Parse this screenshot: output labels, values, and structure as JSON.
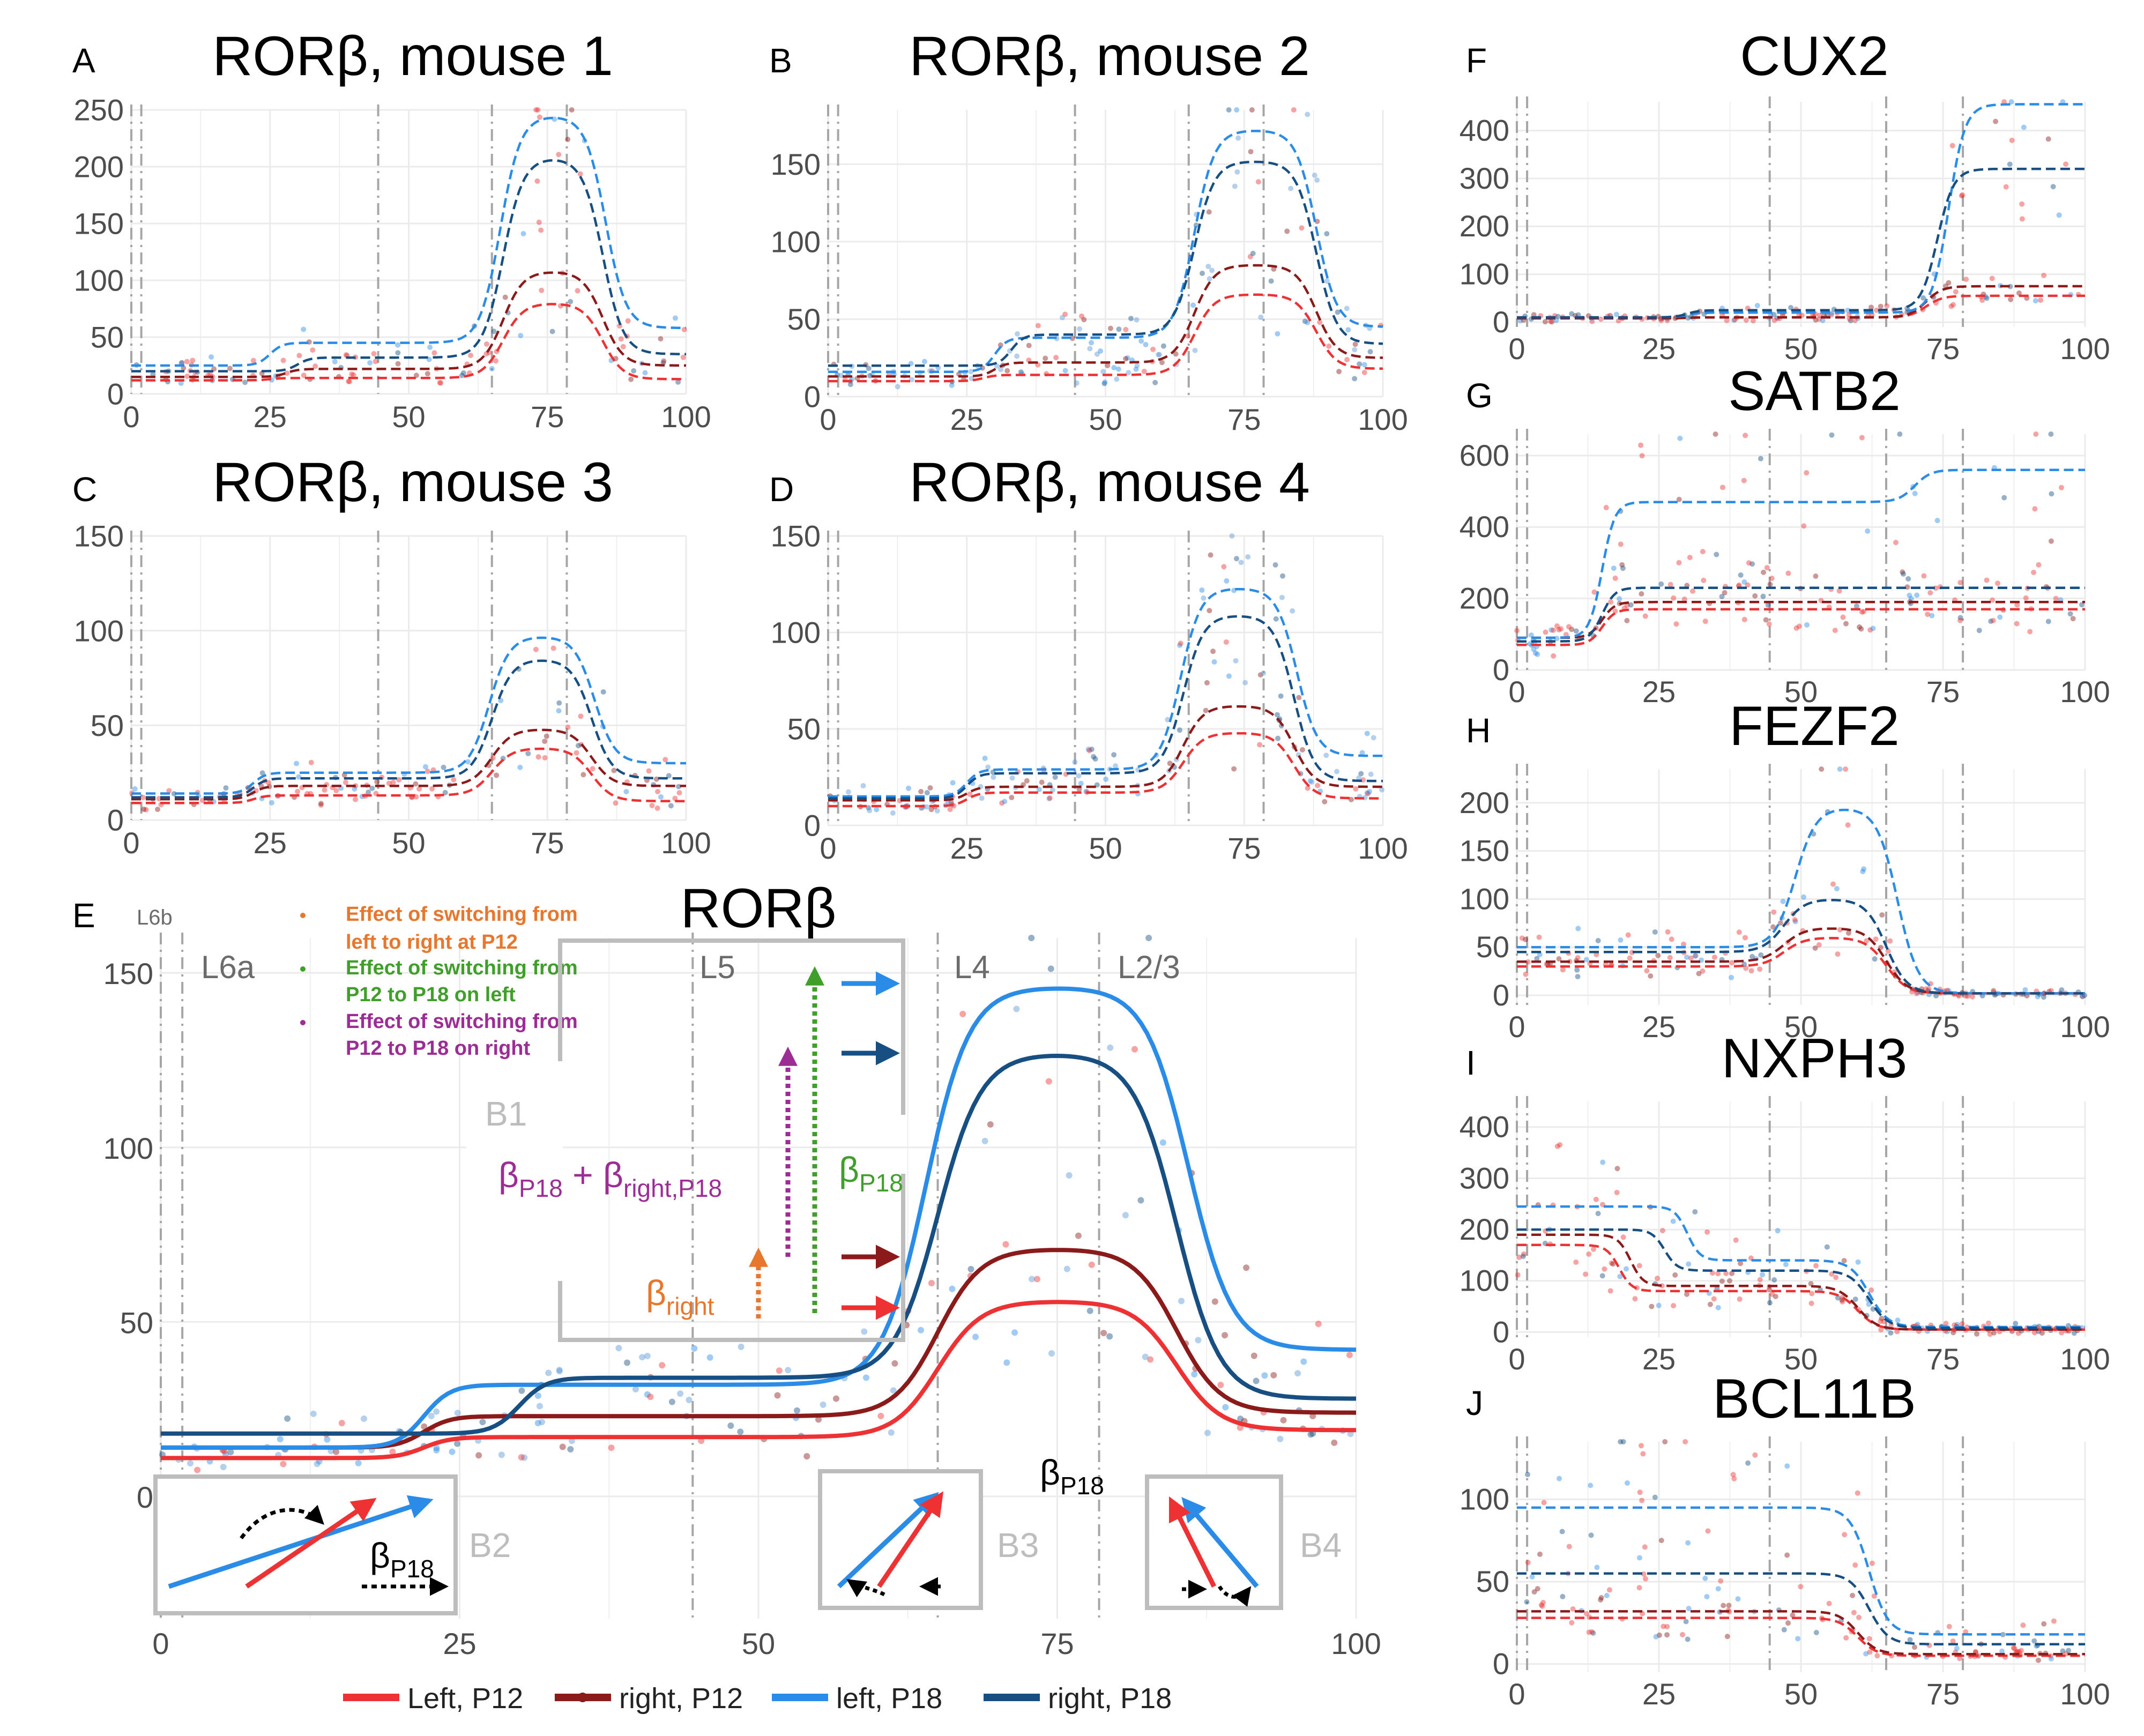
{
  "panel_labels": [
    "A",
    "B",
    "C",
    "D",
    "E",
    "F",
    "G",
    "H",
    "I",
    "J"
  ],
  "legend": [
    {
      "label": "Left, P12",
      "color": "#ee3233"
    },
    {
      "label": "right, P12",
      "color": "#8b1a1a"
    },
    {
      "label": "left, P18",
      "color": "#2b8ce8"
    },
    {
      "label": "right, P18",
      "color": "#174f82"
    }
  ],
  "annotation": {
    "layers": [
      "L6b",
      "L6a",
      "L5",
      "L4",
      "L2/3"
    ],
    "notes": [
      {
        "text1": "Effect of switching from",
        "text2": "left to right at P12",
        "color": "#e8772e"
      },
      {
        "text1": "Effect of switching from",
        "text2": "P12 to P18 on left",
        "color": "#3f9f2a"
      },
      {
        "text1": "Effect of switching from",
        "text2": "P12 to P18 on right",
        "color": "#9c2d95"
      }
    ],
    "box_labels": [
      "B1",
      "B2",
      "B3",
      "B4"
    ],
    "beta_symbol": "β",
    "beta_terms": {
      "p18_sub": "P18",
      "plus": " + ",
      "right_p18_sub": "right,P18",
      "right_sub": "right"
    }
  },
  "chart_data": [
    {
      "id": "A",
      "type": "line",
      "title": "RORβ, mouse 1",
      "xlim": [
        0,
        100
      ],
      "ylim": [
        0,
        250
      ],
      "xticks": [
        "0",
        "25",
        "50",
        "75",
        "100"
      ],
      "yticks": [
        "0",
        "50",
        "100",
        "150",
        "200",
        "250"
      ],
      "vlines": [
        0,
        1.8,
        44.5,
        65,
        78.5
      ],
      "series": [
        {
          "color": "#ee3233",
          "base": 12,
          "step": 14,
          "step_x": 25,
          "peak": 80,
          "center": 76,
          "width": 18,
          "tail": 13
        },
        {
          "color": "#8b1a1a",
          "base": 15,
          "step": 22,
          "step_x": 28,
          "peak": 108,
          "center": 76,
          "width": 18,
          "tail": 25
        },
        {
          "color": "#2b8ce8",
          "base": 25,
          "step": 45,
          "step_x": 25,
          "peak": 245,
          "center": 76,
          "width": 19,
          "tail": 58
        },
        {
          "color": "#174f82",
          "base": 20,
          "step": 32,
          "step_x": 30,
          "peak": 208,
          "center": 76,
          "width": 18,
          "tail": 35
        }
      ],
      "points": {
        "color": "#ee3233",
        "n": 120,
        "amp": 0.35
      }
    },
    {
      "id": "B",
      "type": "line",
      "title": "RORβ, mouse 2",
      "xlim": [
        0,
        100
      ],
      "ylim": [
        0,
        185
      ],
      "xticks": [
        "0",
        "25",
        "50",
        "75",
        "100"
      ],
      "yticks": [
        "0",
        "50",
        "100",
        "150"
      ],
      "vlines": [
        0,
        1.8,
        44.5,
        65,
        78.5
      ],
      "series": [
        {
          "color": "#ee3233",
          "base": 10,
          "step": 14,
          "step_x": 28,
          "peak": 66,
          "center": 77,
          "width": 22,
          "tail": 18
        },
        {
          "color": "#8b1a1a",
          "base": 13,
          "step": 22,
          "step_x": 30,
          "peak": 85,
          "center": 77,
          "width": 22,
          "tail": 25
        },
        {
          "color": "#2b8ce8",
          "base": 16,
          "step": 38,
          "step_x": 30,
          "peak": 172,
          "center": 77,
          "width": 22,
          "tail": 45
        },
        {
          "color": "#174f82",
          "base": 20,
          "step": 40,
          "step_x": 33,
          "peak": 152,
          "center": 77,
          "width": 22,
          "tail": 34
        }
      ],
      "points": {
        "color": "#5a96d6",
        "n": 150,
        "amp": 0.4
      }
    },
    {
      "id": "C",
      "type": "line",
      "title": "RORβ, mouse 3",
      "xlim": [
        0,
        100
      ],
      "ylim": [
        0,
        150
      ],
      "xticks": [
        "0",
        "25",
        "50",
        "75",
        "100"
      ],
      "yticks": [
        "0",
        "50",
        "100",
        "150"
      ],
      "vlines": [
        0,
        1.8,
        44.5,
        65,
        78.5
      ],
      "series": [
        {
          "color": "#ee3233",
          "base": 9,
          "step": 13,
          "step_x": 22,
          "peak": 38,
          "center": 74,
          "width": 18,
          "tail": 10
        },
        {
          "color": "#8b1a1a",
          "base": 11,
          "step": 18,
          "step_x": 22,
          "peak": 48,
          "center": 74,
          "width": 18,
          "tail": 18
        },
        {
          "color": "#2b8ce8",
          "base": 14,
          "step": 25,
          "step_x": 22,
          "peak": 97,
          "center": 74,
          "width": 19,
          "tail": 30
        },
        {
          "color": "#174f82",
          "base": 12,
          "step": 22,
          "step_x": 22,
          "peak": 85,
          "center": 74,
          "width": 18,
          "tail": 22
        }
      ],
      "points": {
        "color": "#ee3233",
        "n": 130,
        "amp": 0.4
      }
    },
    {
      "id": "D",
      "type": "line",
      "title": "RORβ, mouse 4",
      "xlim": [
        0,
        100
      ],
      "ylim": [
        0,
        150
      ],
      "xticks": [
        "0",
        "25",
        "50",
        "75",
        "100"
      ],
      "yticks": [
        "0",
        "50",
        "100",
        "150"
      ],
      "vlines": [
        0,
        1.8,
        44.5,
        65,
        78.5
      ],
      "series": [
        {
          "color": "#ee3233",
          "base": 10,
          "step": 17,
          "step_x": 25,
          "peak": 48,
          "center": 74,
          "width": 20,
          "tail": 14
        },
        {
          "color": "#8b1a1a",
          "base": 13,
          "step": 20,
          "step_x": 25,
          "peak": 62,
          "center": 74,
          "width": 20,
          "tail": 20
        },
        {
          "color": "#2b8ce8",
          "base": 15,
          "step": 29,
          "step_x": 25,
          "peak": 123,
          "center": 74,
          "width": 21,
          "tail": 36
        },
        {
          "color": "#174f82",
          "base": 14,
          "step": 27,
          "step_x": 25,
          "peak": 109,
          "center": 74,
          "width": 20,
          "tail": 23
        }
      ],
      "points": {
        "color": "#5a96d6",
        "n": 160,
        "amp": 0.4
      }
    },
    {
      "id": "E",
      "type": "line",
      "title": "RORβ",
      "xlim": [
        0,
        100
      ],
      "ylim": [
        -35,
        160
      ],
      "xticks": [
        "0",
        "25",
        "50",
        "75",
        "100"
      ],
      "yticks": [
        "0",
        "50",
        "100",
        "150"
      ],
      "vlines": [
        0,
        1.8,
        44.5,
        65,
        78.5
      ],
      "series": [
        {
          "color": "#ee3233",
          "base": 11,
          "step": 17,
          "step_x": 22,
          "peak": 56,
          "center": 75,
          "width": 20,
          "tail": 19
        },
        {
          "color": "#8b1a1a",
          "base": 14,
          "step": 23,
          "step_x": 22,
          "peak": 71,
          "center": 75,
          "width": 20,
          "tail": 24
        },
        {
          "color": "#2b8ce8",
          "base": 14,
          "step": 32,
          "step_x": 22,
          "peak": 146,
          "center": 75,
          "width": 22,
          "tail": 42
        },
        {
          "color": "#174f82",
          "base": 18,
          "step": 34,
          "step_x": 30,
          "peak": 127,
          "center": 75,
          "width": 20,
          "tail": 28
        }
      ],
      "points": {
        "color": "#5a96d6",
        "n": 180,
        "amp": 0.35
      }
    },
    {
      "id": "F",
      "type": "line",
      "title": "CUX2",
      "xlim": [
        0,
        100
      ],
      "ylim": [
        -10,
        460
      ],
      "xticks": [
        "0",
        "25",
        "50",
        "75",
        "100"
      ],
      "yticks": [
        "0",
        "100",
        "200",
        "300",
        "400"
      ],
      "vlines": [
        0,
        1.8,
        44.5,
        65,
        78.5
      ],
      "series": [
        {
          "color": "#ee3233",
          "base": 8,
          "step": 10,
          "step_x": 30,
          "peak": 55,
          "center": 72,
          "width": 10,
          "tail": 55,
          "kind": "sigmoid"
        },
        {
          "color": "#8b1a1a",
          "base": 8,
          "step": 10,
          "step_x": 30,
          "peak": 75,
          "center": 72,
          "width": 10,
          "tail": 75,
          "kind": "sigmoid"
        },
        {
          "color": "#2b8ce8",
          "base": 10,
          "step": 20,
          "step_x": 30,
          "peak": 455,
          "center": 76,
          "width": 10,
          "tail": 455,
          "kind": "sigmoid"
        },
        {
          "color": "#174f82",
          "base": 10,
          "step": 25,
          "step_x": 30,
          "peak": 320,
          "center": 74,
          "width": 10,
          "tail": 320,
          "kind": "sigmoid"
        }
      ],
      "points": {
        "color": "#ee3233",
        "n": 150,
        "amp": 0.4
      }
    },
    {
      "id": "G",
      "type": "line",
      "title": "SATB2",
      "xlim": [
        0,
        100
      ],
      "ylim": [
        0,
        660
      ],
      "xticks": [
        "0",
        "25",
        "50",
        "75",
        "100"
      ],
      "yticks": [
        "0",
        "200",
        "400",
        "600"
      ],
      "vlines": [
        0,
        1.8,
        44.5,
        65,
        78.5
      ],
      "series": [
        {
          "color": "#ee3233",
          "base": 70,
          "step": 170,
          "step_x": 15,
          "peak": 170,
          "center": 70,
          "width": 10,
          "tail": 170,
          "kind": "sigmoid"
        },
        {
          "color": "#8b1a1a",
          "base": 90,
          "step": 190,
          "step_x": 15,
          "peak": 190,
          "center": 70,
          "width": 10,
          "tail": 190,
          "kind": "sigmoid"
        },
        {
          "color": "#2b8ce8",
          "base": 90,
          "step": 470,
          "step_x": 15,
          "peak": 560,
          "center": 70,
          "width": 10,
          "tail": 560,
          "kind": "sigmoid"
        },
        {
          "color": "#174f82",
          "base": 80,
          "step": 230,
          "step_x": 15,
          "peak": 230,
          "center": 70,
          "width": 10,
          "tail": 230,
          "kind": "sigmoid"
        }
      ],
      "points": {
        "color": "#ee3233",
        "n": 170,
        "amp": 0.45
      }
    },
    {
      "id": "H",
      "type": "line",
      "title": "FEZF2",
      "xlim": [
        0,
        100
      ],
      "ylim": [
        -10,
        235
      ],
      "xticks": [
        "0",
        "25",
        "50",
        "75",
        "100"
      ],
      "yticks": [
        "0",
        "50",
        "100",
        "150",
        "200"
      ],
      "vlines": [
        0,
        1.8,
        44.5,
        65,
        78.5
      ],
      "series": [
        {
          "color": "#ee3233",
          "base": 30,
          "step": 30,
          "step_x": 30,
          "peak": 60,
          "center": 56,
          "width": 18,
          "tail": 2
        },
        {
          "color": "#8b1a1a",
          "base": 35,
          "step": 35,
          "step_x": 30,
          "peak": 70,
          "center": 56,
          "width": 18,
          "tail": 2
        },
        {
          "color": "#2b8ce8",
          "base": 50,
          "step": 50,
          "step_x": 30,
          "peak": 195,
          "center": 58,
          "width": 18,
          "tail": 2
        },
        {
          "color": "#174f82",
          "base": 45,
          "step": 45,
          "step_x": 30,
          "peak": 100,
          "center": 56,
          "width": 18,
          "tail": 2
        }
      ],
      "points": {
        "color": "#ee3233",
        "n": 160,
        "amp": 0.4
      }
    },
    {
      "id": "I",
      "type": "line",
      "title": "NXPH3",
      "xlim": [
        0,
        100
      ],
      "ylim": [
        -10,
        450
      ],
      "xticks": [
        "0",
        "25",
        "50",
        "75",
        "100"
      ],
      "yticks": [
        "0",
        "100",
        "200",
        "300",
        "400"
      ],
      "vlines": [
        0,
        1.8,
        44.5,
        65,
        78.5
      ],
      "series": [
        {
          "color": "#ee3233",
          "base": 170,
          "step": 80,
          "step_x": 18,
          "peak": 80,
          "center": 60,
          "width": 8,
          "tail": 5,
          "kind": "down"
        },
        {
          "color": "#8b1a1a",
          "base": 190,
          "step": 90,
          "step_x": 20,
          "peak": 90,
          "center": 60,
          "width": 8,
          "tail": 5,
          "kind": "down"
        },
        {
          "color": "#2b8ce8",
          "base": 245,
          "step": 140,
          "step_x": 30,
          "peak": 140,
          "center": 62,
          "width": 8,
          "tail": 10,
          "kind": "down"
        },
        {
          "color": "#174f82",
          "base": 200,
          "step": 120,
          "step_x": 26,
          "peak": 120,
          "center": 62,
          "width": 8,
          "tail": 8,
          "kind": "down"
        }
      ],
      "points": {
        "color": "#ee3233",
        "n": 170,
        "amp": 0.5
      }
    },
    {
      "id": "J",
      "type": "line",
      "title": "BCL11B",
      "xlim": [
        0,
        100
      ],
      "ylim": [
        -5,
        135
      ],
      "xticks": [
        "0",
        "25",
        "50",
        "75",
        "100"
      ],
      "yticks": [
        "0",
        "50",
        "100"
      ],
      "vlines": [
        0,
        1.8,
        44.5,
        65,
        78.5
      ],
      "series": [
        {
          "color": "#ee3233",
          "base": 28,
          "step": 28,
          "step_x": 60,
          "peak": 28,
          "center": 60,
          "width": 4,
          "tail": 5,
          "kind": "down"
        },
        {
          "color": "#8b1a1a",
          "base": 32,
          "step": 32,
          "step_x": 60,
          "peak": 32,
          "center": 60,
          "width": 4,
          "tail": 6,
          "kind": "down"
        },
        {
          "color": "#2b8ce8",
          "base": 95,
          "step": 95,
          "step_x": 62,
          "peak": 95,
          "center": 62,
          "width": 4,
          "tail": 18,
          "kind": "down"
        },
        {
          "color": "#174f82",
          "base": 55,
          "step": 55,
          "step_x": 62,
          "peak": 55,
          "center": 62,
          "width": 4,
          "tail": 12,
          "kind": "down"
        }
      ],
      "points": {
        "color": "#ee3233",
        "n": 150,
        "amp": 0.5
      }
    }
  ]
}
